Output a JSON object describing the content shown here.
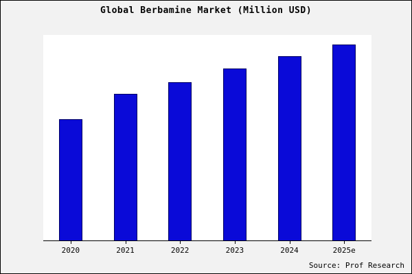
{
  "chart_data": {
    "type": "bar",
    "title": "Global Berbamine Market (Million USD)",
    "categories": [
      "2020",
      "2021",
      "2022",
      "2023",
      "2024",
      "2025e"
    ],
    "values": [
      62,
      75,
      81,
      88,
      94,
      100
    ],
    "xlabel": "",
    "ylabel": "",
    "ylim": [
      0,
      105
    ],
    "grid": false,
    "legend": false,
    "bar_color": "#0a0ad8",
    "bar_border_color": "#000060",
    "plot_background": "#ffffff",
    "page_background": "#f2f2f2"
  },
  "source": {
    "label": "Source: Prof Research"
  }
}
